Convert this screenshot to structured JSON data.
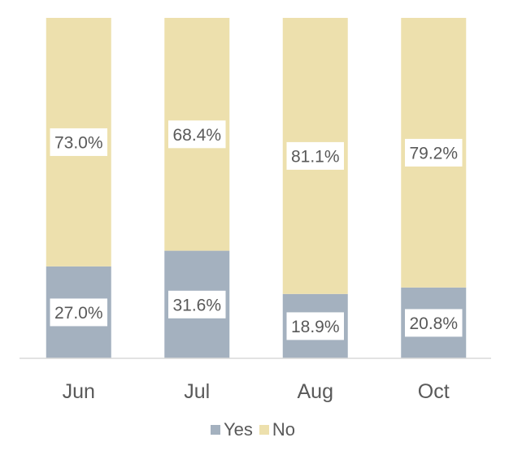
{
  "chart_data": {
    "type": "bar",
    "stacked": true,
    "percent_stacked": true,
    "categories": [
      "Jun",
      "Jul",
      "Aug",
      "Oct"
    ],
    "series": [
      {
        "name": "Yes",
        "values": [
          27.0,
          31.6,
          18.9,
          20.8
        ],
        "labels": [
          "27.0%",
          "31.6%",
          "18.9%",
          "20.8%"
        ],
        "color": "#a4b1bf"
      },
      {
        "name": "No",
        "values": [
          73.0,
          68.4,
          81.1,
          79.2
        ],
        "labels": [
          "73.0%",
          "68.4%",
          "81.1%",
          "79.2%"
        ],
        "color": "#ede0ad"
      }
    ],
    "ylim": [
      0,
      100
    ],
    "grid": false,
    "legend": "bottom"
  }
}
